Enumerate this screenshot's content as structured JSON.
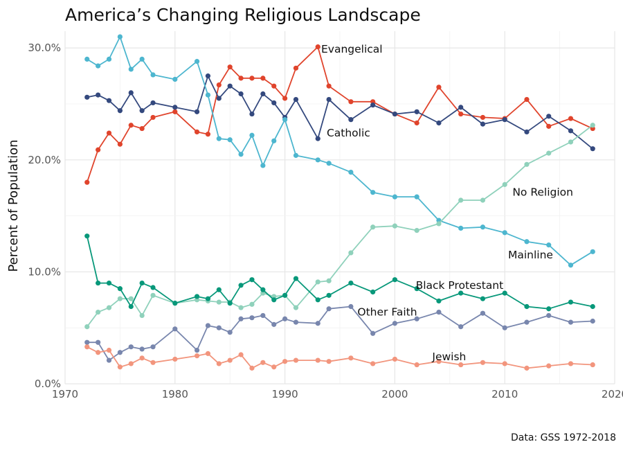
{
  "chart_data": {
    "type": "line",
    "title": "America’s Changing Religious Landscape",
    "ylabel": "Percent of Population",
    "xlabel": "",
    "caption": "Data: GSS 1972-2018",
    "xlim": [
      1970,
      2020
    ],
    "ylim": [
      0,
      31.5
    ],
    "x_ticks": [
      1970,
      1980,
      1990,
      2000,
      2010,
      2020
    ],
    "x_tick_labels": [
      "1970",
      "1980",
      "1990",
      "2000",
      "2010",
      "2020"
    ],
    "y_ticks": [
      0,
      10,
      20,
      30
    ],
    "y_tick_labels": [
      "0.0%",
      "10.0%",
      "20.0%",
      "30.0%"
    ],
    "grid": true,
    "legend": "none (direct labels)",
    "x": [
      1972,
      1973,
      1974,
      1975,
      1976,
      1977,
      1978,
      1980,
      1982,
      1983,
      1984,
      1985,
      1986,
      1987,
      1988,
      1989,
      1990,
      1991,
      1993,
      1994,
      1996,
      1998,
      2000,
      2002,
      2004,
      2006,
      2008,
      2010,
      2012,
      2014,
      2016,
      2018
    ],
    "series": [
      {
        "name": "Evangelical",
        "color": "#e0442c",
        "values": [
          18.0,
          20.9,
          22.4,
          21.4,
          23.1,
          22.8,
          23.8,
          24.3,
          22.5,
          22.3,
          26.7,
          28.3,
          27.3,
          27.3,
          27.3,
          26.6,
          25.5,
          28.2,
          30.1,
          26.6,
          25.2,
          25.2,
          24.1,
          23.3,
          26.5,
          24.1,
          23.8,
          23.7,
          25.4,
          23.0,
          23.7,
          22.8
        ]
      },
      {
        "name": "Catholic",
        "color": "#34497e",
        "values": [
          25.6,
          25.8,
          25.3,
          24.4,
          26.0,
          24.4,
          25.1,
          24.7,
          24.3,
          27.5,
          25.5,
          26.6,
          25.9,
          24.1,
          25.9,
          25.1,
          23.8,
          25.4,
          21.9,
          25.4,
          23.6,
          24.9,
          24.1,
          24.3,
          23.3,
          24.7,
          23.2,
          23.6,
          22.5,
          23.9,
          22.6,
          21.0
        ]
      },
      {
        "name": "Mainline",
        "color": "#4db6cf",
        "values": [
          29.0,
          28.4,
          29.0,
          31.0,
          28.1,
          29.0,
          27.6,
          27.2,
          28.8,
          25.8,
          21.9,
          21.8,
          20.5,
          22.2,
          19.5,
          21.7,
          23.6,
          20.4,
          20.0,
          19.7,
          18.9,
          17.1,
          16.7,
          16.7,
          14.6,
          13.9,
          14.0,
          13.5,
          12.7,
          12.4,
          10.6,
          11.8
        ]
      },
      {
        "name": "No Religion",
        "color": "#8fd1bb",
        "values": [
          5.1,
          6.4,
          6.8,
          7.6,
          7.6,
          6.1,
          7.9,
          7.2,
          7.5,
          7.4,
          7.3,
          7.3,
          6.8,
          7.1,
          8.1,
          7.8,
          7.9,
          6.8,
          9.1,
          9.2,
          11.7,
          14.0,
          14.1,
          13.7,
          14.3,
          16.4,
          16.4,
          17.8,
          19.6,
          20.6,
          21.6,
          23.1
        ]
      },
      {
        "name": "Black Protestant",
        "color": "#08987a",
        "values": [
          13.2,
          9.0,
          9.0,
          8.5,
          6.9,
          9.0,
          8.6,
          7.2,
          7.8,
          7.6,
          8.4,
          7.2,
          8.8,
          9.3,
          8.4,
          7.5,
          7.9,
          9.4,
          7.5,
          7.9,
          9.0,
          8.2,
          9.3,
          8.5,
          7.4,
          8.1,
          7.6,
          8.1,
          6.9,
          6.7,
          7.3,
          6.9
        ]
      },
      {
        "name": "Other Faith",
        "color": "#7886ad",
        "values": [
          3.7,
          3.7,
          2.1,
          2.8,
          3.3,
          3.1,
          3.3,
          4.9,
          3.0,
          5.2,
          5.0,
          4.6,
          5.8,
          5.9,
          6.1,
          5.3,
          5.8,
          5.5,
          5.4,
          6.7,
          6.9,
          4.5,
          5.4,
          5.8,
          6.4,
          5.1,
          6.3,
          5.0,
          5.5,
          6.1,
          5.5,
          5.6
        ]
      },
      {
        "name": "Jewish",
        "color": "#f2957d",
        "values": [
          3.3,
          2.8,
          3.0,
          1.5,
          1.8,
          2.3,
          1.9,
          2.2,
          2.5,
          2.7,
          1.8,
          2.1,
          2.6,
          1.4,
          1.9,
          1.5,
          2.0,
          2.1,
          2.1,
          2.0,
          2.3,
          1.8,
          2.2,
          1.7,
          2.0,
          1.7,
          1.9,
          1.8,
          1.4,
          1.6,
          1.8,
          1.7
        ]
      }
    ],
    "annotations": [
      {
        "text": "Evangelical",
        "series": "Evangelical",
        "x": 1993.3,
        "y": 29.9,
        "anchor": "start"
      },
      {
        "text": "Catholic",
        "series": "Catholic",
        "x": 1993.8,
        "y": 22.4,
        "anchor": "start"
      },
      {
        "text": "No Religion",
        "series": "No Religion",
        "x": 2010.7,
        "y": 17.1,
        "anchor": "start"
      },
      {
        "text": "Mainline",
        "series": "Mainline",
        "x": 2010.3,
        "y": 11.5,
        "anchor": "start"
      },
      {
        "text": "Black Protestant",
        "series": "Black Protestant",
        "x": 2001.9,
        "y": 8.8,
        "anchor": "start"
      },
      {
        "text": "Other Faith",
        "series": "Other Faith",
        "x": 1996.6,
        "y": 6.4,
        "anchor": "start"
      },
      {
        "text": "Jewish",
        "series": "Jewish",
        "x": 2003.4,
        "y": 2.4,
        "anchor": "start"
      }
    ]
  }
}
